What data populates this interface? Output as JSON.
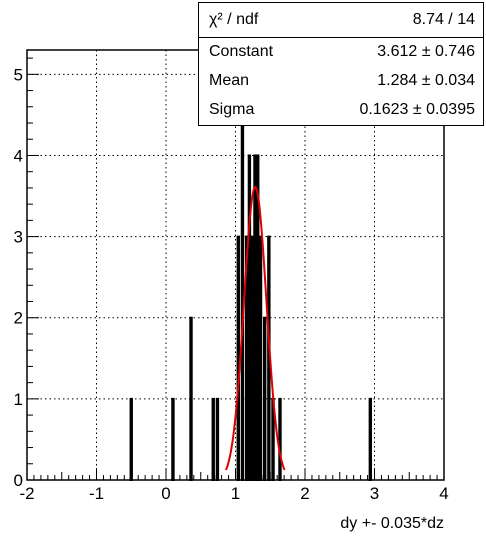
{
  "chart_data": {
    "type": "bar",
    "xlabel": "dy +- 0.035*dz",
    "ylabel": "",
    "xlim": [
      -2,
      4
    ],
    "ylim": [
      0,
      5.3
    ],
    "x_ticks": [
      "-2",
      "-1",
      "0",
      "1",
      "2",
      "3",
      "4"
    ],
    "y_ticks": [
      "0",
      "1",
      "2",
      "3",
      "4",
      "5"
    ],
    "grid": true,
    "bin_width": 0.02,
    "bins": [
      {
        "x": -0.5,
        "count": 1
      },
      {
        "x": 0.1,
        "count": 1
      },
      {
        "x": 0.36,
        "count": 2
      },
      {
        "x": 0.68,
        "count": 1
      },
      {
        "x": 0.74,
        "count": 1
      },
      {
        "x": 1.04,
        "count": 3
      },
      {
        "x": 1.1,
        "count": 5
      },
      {
        "x": 1.16,
        "count": 3
      },
      {
        "x": 1.2,
        "count": 4
      },
      {
        "x": 1.24,
        "count": 3
      },
      {
        "x": 1.28,
        "count": 4
      },
      {
        "x": 1.32,
        "count": 4
      },
      {
        "x": 1.36,
        "count": 3
      },
      {
        "x": 1.42,
        "count": 2
      },
      {
        "x": 1.48,
        "count": 3
      },
      {
        "x": 1.54,
        "count": 1
      },
      {
        "x": 1.64,
        "count": 1
      },
      {
        "x": 2.94,
        "count": 1
      }
    ],
    "fit": {
      "type": "gaussian",
      "constant": 3.612,
      "mean": 1.284,
      "sigma": 0.1623,
      "color": "#e00000"
    }
  },
  "stats_box": {
    "rows": [
      {
        "label": "χ² / ndf",
        "value": "8.74 / 14"
      },
      {
        "label": "Constant",
        "value": "3.612 ± 0.746"
      },
      {
        "label": "Mean",
        "value": "1.284 ± 0.034"
      },
      {
        "label": "Sigma",
        "value": "0.1623 ± 0.0395"
      }
    ]
  }
}
